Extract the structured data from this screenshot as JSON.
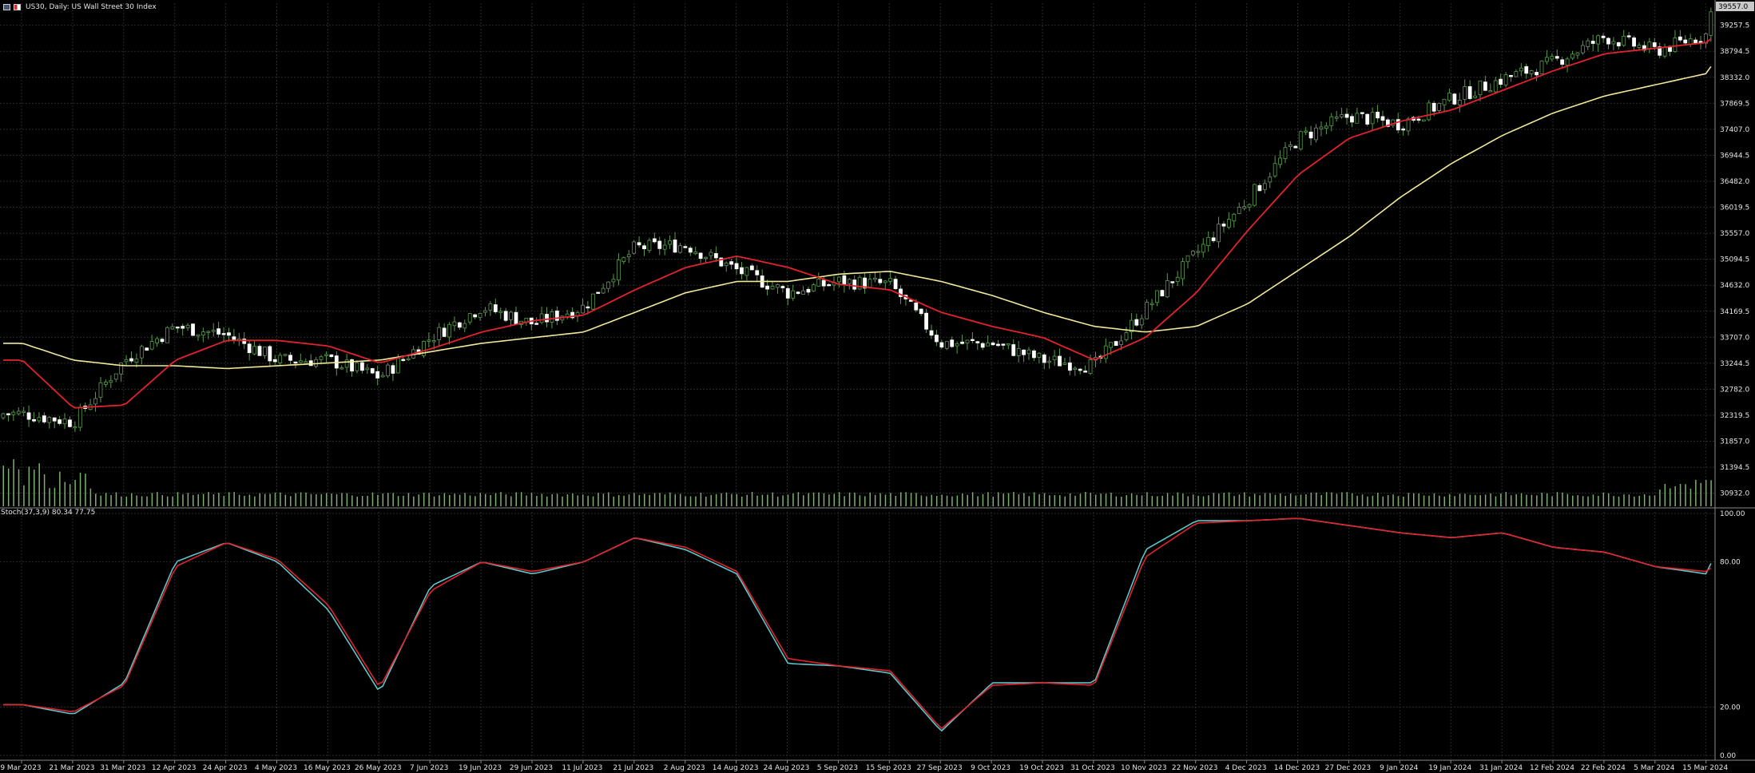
{
  "header": {
    "symbol": "US30",
    "timeframe": "Daily",
    "description": "US Wall Street 30 Index",
    "title_text": "US30, Daily:  US Wall Street 30 Index"
  },
  "indicator": {
    "title_text": "Stoch(37,3,9) 80.34 77.75",
    "name": "Stoch",
    "params": "37,3,9",
    "main_value": "80.34",
    "signal_value": "77.75"
  },
  "price_axis": {
    "labels": [
      "39257.5",
      "38794.5",
      "38332.0",
      "37869.5",
      "37407.0",
      "36944.5",
      "36482.0",
      "36019.5",
      "35557.0",
      "35094.5",
      "34632.0",
      "34169.5",
      "33707.0",
      "33244.5",
      "32782.0",
      "32319.5",
      "31857.0",
      "31394.5",
      "30932.0"
    ],
    "current_price_tag": "39557.0"
  },
  "osc_axis": {
    "labels": [
      "100.00",
      "80.00",
      "20.00",
      "0.00"
    ]
  },
  "time_axis": {
    "labels": [
      "9 Mar 2023",
      "21 Mar 2023",
      "31 Mar 2023",
      "12 Apr 2023",
      "24 Apr 2023",
      "4 May 2023",
      "16 May 2023",
      "26 May 2023",
      "7 Jun 2023",
      "19 Jun 2023",
      "29 Jun 2023",
      "11 Jul 2023",
      "21 Jul 2023",
      "2 Aug 2023",
      "14 Aug 2023",
      "24 Aug 2023",
      "5 Sep 2023",
      "15 Sep 2023",
      "27 Sep 2023",
      "9 Oct 2023",
      "19 Oct 2023",
      "31 Oct 2023",
      "10 Nov 2023",
      "22 Nov 2023",
      "4 Dec 2023",
      "14 Dec 2023",
      "27 Dec 2023",
      "9 Jan 2024",
      "19 Jan 2024",
      "31 Jan 2024",
      "12 Feb 2024",
      "22 Feb 2024",
      "5 Mar 2024",
      "15 Mar 2024"
    ]
  },
  "colors": {
    "background": "#000000",
    "grid": "#2b2b2b",
    "bull_candle": "#000000",
    "bear_candle": "#ffffff",
    "candle_wick": "#5b9b4f",
    "ma_fast": "#e3232c",
    "ma_slow": "#f1e99a",
    "volume": "#7fae72",
    "stoch_main": "#5ec5c8",
    "stoch_signal": "#e3232c"
  },
  "chart_data": {
    "type": "candlestick",
    "title": "US30, Daily:  US Wall Street 30 Index",
    "ylim": [
      30700,
      39650
    ],
    "price_path_anchors": [
      [
        "9 Mar 2023",
        32350
      ],
      [
        "21 Mar 2023",
        32200
      ],
      [
        "31 Mar 2023",
        33300
      ],
      [
        "12 Apr 2023",
        33900
      ],
      [
        "24 Apr 2023",
        33750
      ],
      [
        "4 May 2023",
        33300
      ],
      [
        "16 May 2023",
        33300
      ],
      [
        "26 May 2023",
        33000
      ],
      [
        "7 Jun 2023",
        33700
      ],
      [
        "19 Jun 2023",
        34250
      ],
      [
        "29 Jun 2023",
        33950
      ],
      [
        "11 Jul 2023",
        34250
      ],
      [
        "21 Jul 2023",
        35300
      ],
      [
        "2 Aug 2023",
        35350
      ],
      [
        "14 Aug 2023",
        34900
      ],
      [
        "24 Aug 2023",
        34500
      ],
      [
        "5 Sep 2023",
        34700
      ],
      [
        "15 Sep 2023",
        34650
      ],
      [
        "27 Sep 2023",
        33600
      ],
      [
        "9 Oct 2023",
        33600
      ],
      [
        "19 Oct 2023",
        33300
      ],
      [
        "31 Oct 2023",
        33200
      ],
      [
        "10 Nov 2023",
        34200
      ],
      [
        "22 Nov 2023",
        35200
      ],
      [
        "4 Dec 2023",
        36150
      ],
      [
        "14 Dec 2023",
        37250
      ],
      [
        "27 Dec 2023",
        37650
      ],
      [
        "9 Jan 2024",
        37500
      ],
      [
        "19 Jan 2024",
        37950
      ],
      [
        "31 Jan 2024",
        38300
      ],
      [
        "12 Feb 2024",
        38600
      ],
      [
        "22 Feb 2024",
        39050
      ],
      [
        "5 Mar 2024",
        38800
      ],
      [
        "15 Mar 2024",
        39100
      ],
      [
        "end",
        39557
      ]
    ],
    "ma_fast_anchors": [
      [
        "9 Mar 2023",
        33300
      ],
      [
        "21 Mar 2023",
        32450
      ],
      [
        "31 Mar 2023",
        32500
      ],
      [
        "12 Apr 2023",
        33300
      ],
      [
        "24 Apr 2023",
        33650
      ],
      [
        "4 May 2023",
        33650
      ],
      [
        "16 May 2023",
        33550
      ],
      [
        "26 May 2023",
        33250
      ],
      [
        "7 Jun 2023",
        33500
      ],
      [
        "19 Jun 2023",
        33800
      ],
      [
        "29 Jun 2023",
        34000
      ],
      [
        "11 Jul 2023",
        34100
      ],
      [
        "21 Jul 2023",
        34550
      ],
      [
        "2 Aug 2023",
        34950
      ],
      [
        "14 Aug 2023",
        35150
      ],
      [
        "24 Aug 2023",
        34950
      ],
      [
        "5 Sep 2023",
        34650
      ],
      [
        "15 Sep 2023",
        34550
      ],
      [
        "27 Sep 2023",
        34150
      ],
      [
        "9 Oct 2023",
        33900
      ],
      [
        "19 Oct 2023",
        33700
      ],
      [
        "31 Oct 2023",
        33300
      ],
      [
        "10 Nov 2023",
        33700
      ],
      [
        "22 Nov 2023",
        34500
      ],
      [
        "4 Dec 2023",
        35600
      ],
      [
        "14 Dec 2023",
        36600
      ],
      [
        "27 Dec 2023",
        37250
      ],
      [
        "9 Jan 2024",
        37550
      ],
      [
        "19 Jan 2024",
        37750
      ],
      [
        "31 Jan 2024",
        38100
      ],
      [
        "12 Feb 2024",
        38450
      ],
      [
        "22 Feb 2024",
        38750
      ],
      [
        "5 Mar 2024",
        38850
      ],
      [
        "15 Mar 2024",
        38950
      ],
      [
        "end",
        39030
      ]
    ],
    "ma_slow_anchors": [
      [
        "9 Mar 2023",
        33600
      ],
      [
        "21 Mar 2023",
        33300
      ],
      [
        "31 Mar 2023",
        33200
      ],
      [
        "12 Apr 2023",
        33200
      ],
      [
        "24 Apr 2023",
        33150
      ],
      [
        "4 May 2023",
        33200
      ],
      [
        "16 May 2023",
        33250
      ],
      [
        "26 May 2023",
        33300
      ],
      [
        "7 Jun 2023",
        33450
      ],
      [
        "19 Jun 2023",
        33600
      ],
      [
        "29 Jun 2023",
        33700
      ],
      [
        "11 Jul 2023",
        33800
      ],
      [
        "21 Jul 2023",
        34150
      ],
      [
        "2 Aug 2023",
        34500
      ],
      [
        "14 Aug 2023",
        34700
      ],
      [
        "24 Aug 2023",
        34700
      ],
      [
        "5 Sep 2023",
        34830
      ],
      [
        "15 Sep 2023",
        34880
      ],
      [
        "27 Sep 2023",
        34700
      ],
      [
        "9 Oct 2023",
        34450
      ],
      [
        "19 Oct 2023",
        34150
      ],
      [
        "31 Oct 2023",
        33900
      ],
      [
        "10 Nov 2023",
        33800
      ],
      [
        "22 Nov 2023",
        33900
      ],
      [
        "4 Dec 2023",
        34300
      ],
      [
        "14 Dec 2023",
        34900
      ],
      [
        "27 Dec 2023",
        35500
      ],
      [
        "9 Jan 2024",
        36200
      ],
      [
        "19 Jan 2024",
        36800
      ],
      [
        "31 Jan 2024",
        37300
      ],
      [
        "12 Feb 2024",
        37700
      ],
      [
        "22 Feb 2024",
        38000
      ],
      [
        "5 Mar 2024",
        38200
      ],
      [
        "15 Mar 2024",
        38400
      ],
      [
        "end",
        38550
      ]
    ],
    "stoch_main_anchors": [
      [
        "9 Mar 2023",
        21
      ],
      [
        "21 Mar 2023",
        17
      ],
      [
        "31 Mar 2023",
        30
      ],
      [
        "12 Apr 2023",
        80
      ],
      [
        "24 Apr 2023",
        88
      ],
      [
        "4 May 2023",
        80
      ],
      [
        "16 May 2023",
        60
      ],
      [
        "26 May 2023",
        26
      ],
      [
        "7 Jun 2023",
        70
      ],
      [
        "19 Jun 2023",
        80
      ],
      [
        "29 Jun 2023",
        75
      ],
      [
        "11 Jul 2023",
        80
      ],
      [
        "21 Jul 2023",
        90
      ],
      [
        "2 Aug 2023",
        85
      ],
      [
        "14 Aug 2023",
        75
      ],
      [
        "24 Aug 2023",
        38
      ],
      [
        "5 Sep 2023",
        37
      ],
      [
        "15 Sep 2023",
        34
      ],
      [
        "27 Sep 2023",
        10
      ],
      [
        "9 Oct 2023",
        30
      ],
      [
        "19 Oct 2023",
        30
      ],
      [
        "31 Oct 2023",
        30
      ],
      [
        "10 Nov 2023",
        85
      ],
      [
        "22 Nov 2023",
        97
      ],
      [
        "4 Dec 2023",
        97
      ],
      [
        "14 Dec 2023",
        98
      ],
      [
        "27 Dec 2023",
        95
      ],
      [
        "9 Jan 2024",
        92
      ],
      [
        "19 Jan 2024",
        90
      ],
      [
        "31 Jan 2024",
        92
      ],
      [
        "12 Feb 2024",
        86
      ],
      [
        "22 Feb 2024",
        84
      ],
      [
        "5 Mar 2024",
        78
      ],
      [
        "15 Mar 2024",
        75
      ],
      [
        "end",
        80.34
      ]
    ],
    "stoch_signal_anchors": [
      [
        "9 Mar 2023",
        21
      ],
      [
        "21 Mar 2023",
        18
      ],
      [
        "31 Mar 2023",
        29
      ],
      [
        "12 Apr 2023",
        78
      ],
      [
        "24 Apr 2023",
        88
      ],
      [
        "4 May 2023",
        81
      ],
      [
        "16 May 2023",
        62
      ],
      [
        "26 May 2023",
        28
      ],
      [
        "7 Jun 2023",
        68
      ],
      [
        "19 Jun 2023",
        80
      ],
      [
        "29 Jun 2023",
        76
      ],
      [
        "11 Jul 2023",
        80
      ],
      [
        "21 Jul 2023",
        90
      ],
      [
        "2 Aug 2023",
        86
      ],
      [
        "14 Aug 2023",
        76
      ],
      [
        "24 Aug 2023",
        40
      ],
      [
        "5 Sep 2023",
        37
      ],
      [
        "15 Sep 2023",
        35
      ],
      [
        "27 Sep 2023",
        11
      ],
      [
        "9 Oct 2023",
        29
      ],
      [
        "19 Oct 2023",
        30
      ],
      [
        "31 Oct 2023",
        29
      ],
      [
        "10 Nov 2023",
        82
      ],
      [
        "22 Nov 2023",
        96
      ],
      [
        "4 Dec 2023",
        97
      ],
      [
        "14 Dec 2023",
        98
      ],
      [
        "27 Dec 2023",
        95
      ],
      [
        "9 Jan 2024",
        92
      ],
      [
        "19 Jan 2024",
        90
      ],
      [
        "31 Jan 2024",
        92
      ],
      [
        "12 Feb 2024",
        86
      ],
      [
        "22 Feb 2024",
        84
      ],
      [
        "5 Mar 2024",
        78
      ],
      [
        "15 Mar 2024",
        76
      ],
      [
        "end",
        77.75
      ]
    ]
  }
}
